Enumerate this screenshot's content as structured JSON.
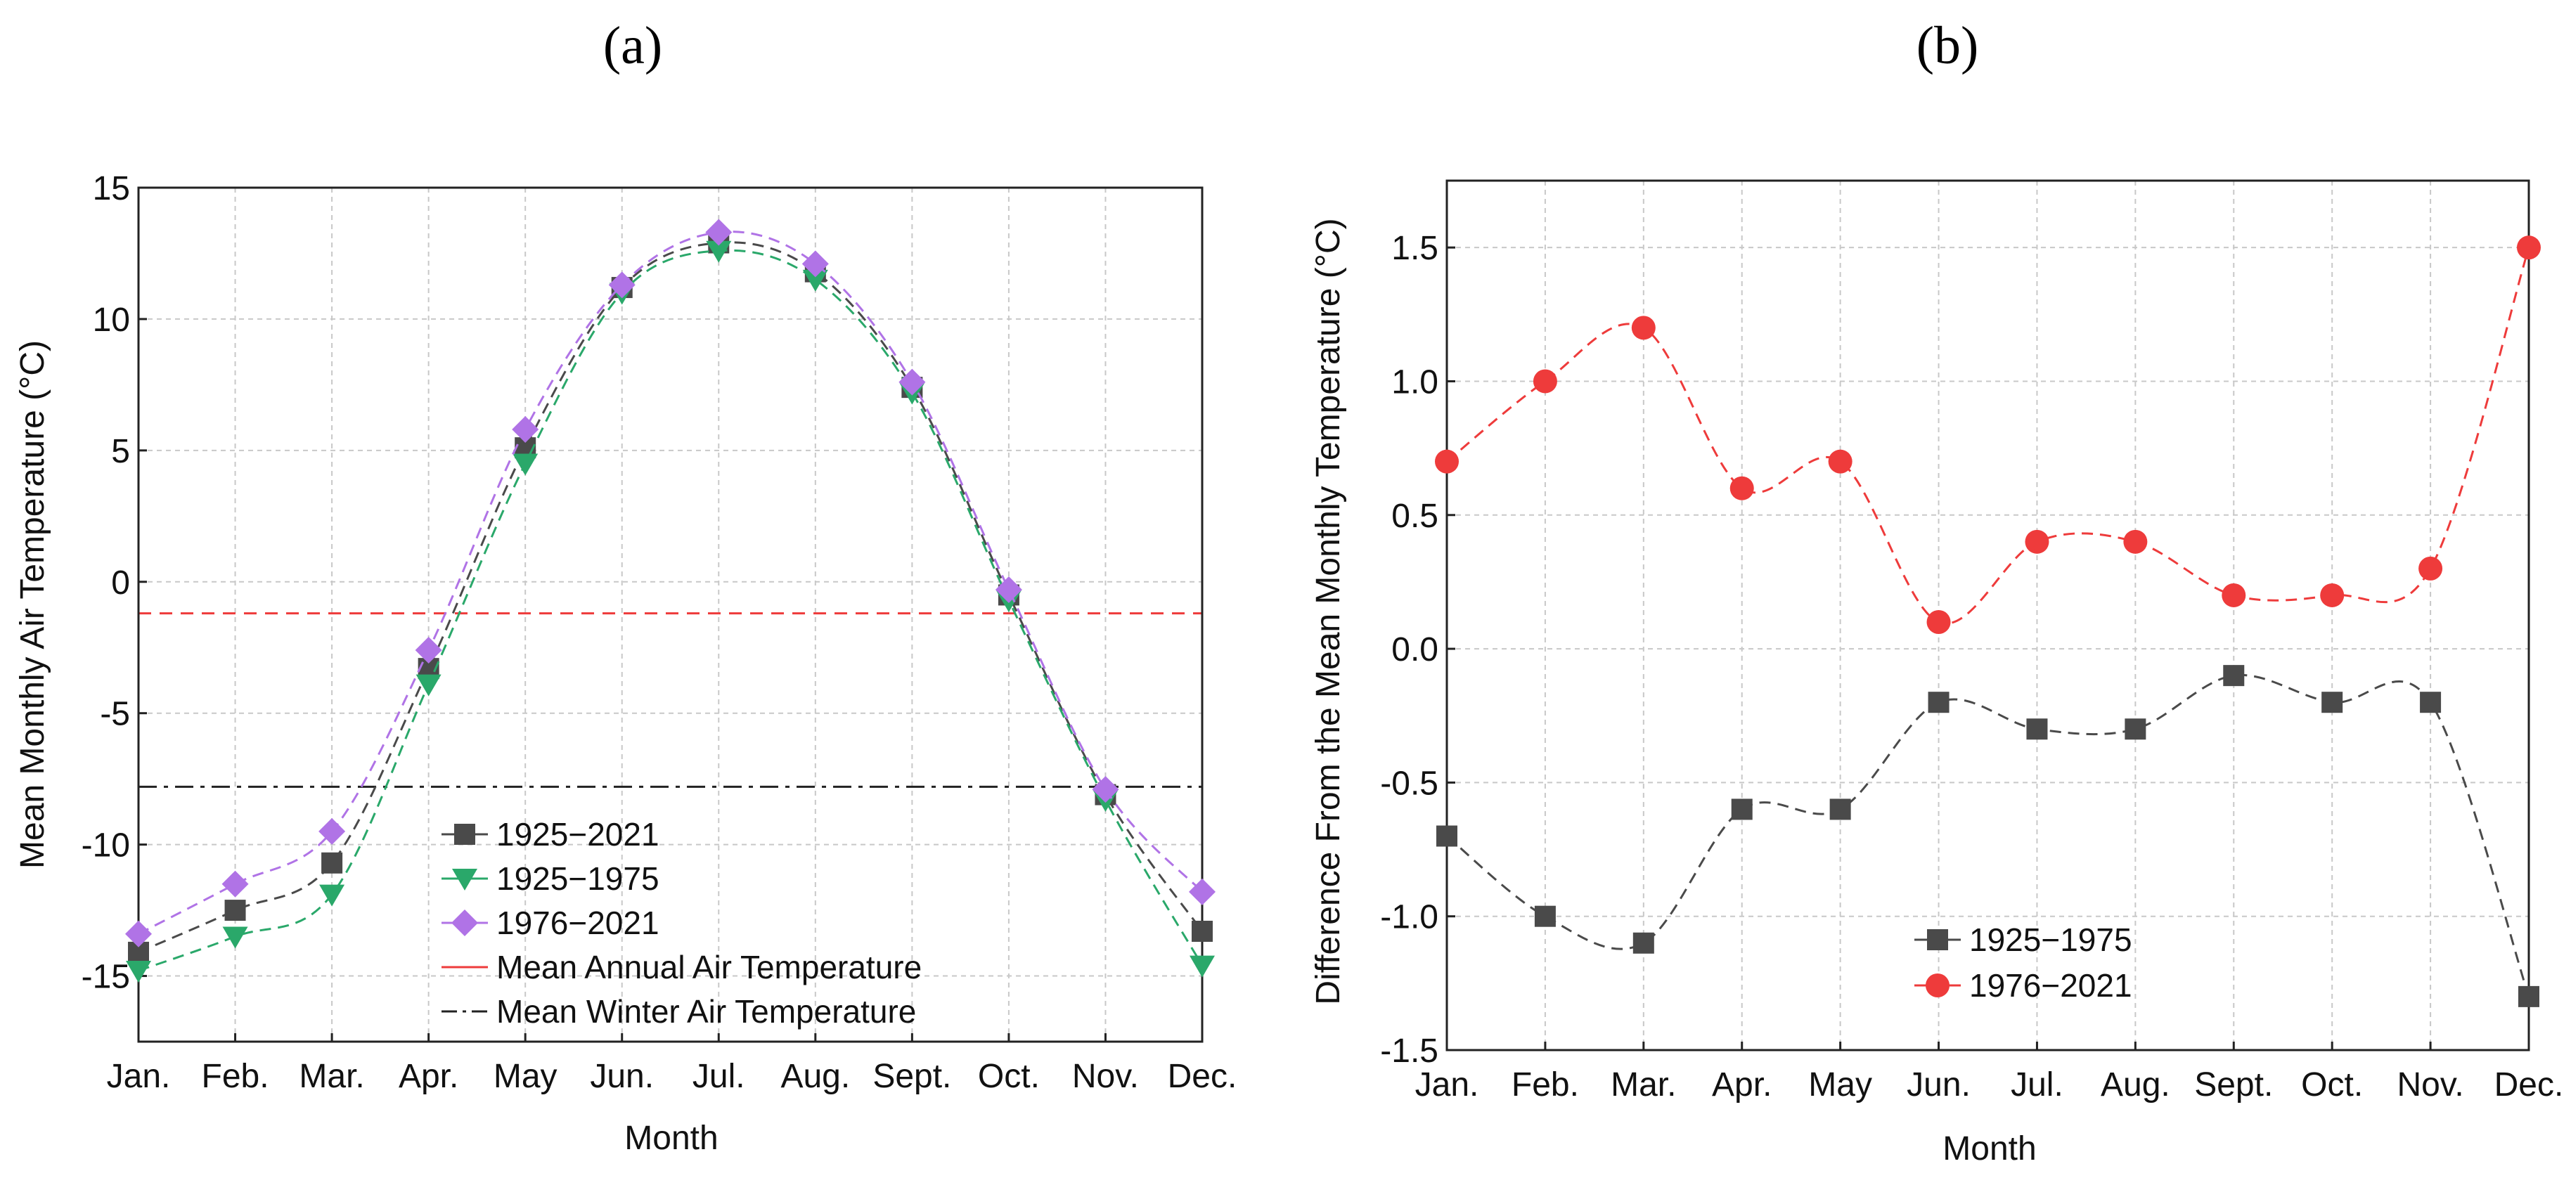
{
  "chart_data": [
    {
      "panel_label": "(a)",
      "type": "line",
      "xlabel": "Month",
      "ylabel": "Mean Monthly Air Temperature (°C)",
      "categories": [
        "Jan.",
        "Feb.",
        "Mar.",
        "Apr.",
        "May",
        "Jun.",
        "Jul.",
        "Aug.",
        "Sept.",
        "Oct.",
        "Nov.",
        "Dec."
      ],
      "ylim": [
        -17.5,
        15
      ],
      "yticks": [
        15,
        10,
        5,
        0,
        -5,
        -10,
        -15
      ],
      "grid": true,
      "legend_position": "bottom-center",
      "series": [
        {
          "name": "1925−2021",
          "marker": "square",
          "color": "#4a4a4a",
          "values": [
            -14.1,
            -12.5,
            -10.7,
            -3.3,
            5.1,
            11.2,
            12.9,
            11.8,
            7.4,
            -0.5,
            -8.1,
            -13.3
          ]
        },
        {
          "name": "1925−1975",
          "marker": "triangle-down",
          "color": "#2aa86a",
          "values": [
            -14.8,
            -13.5,
            -11.9,
            -3.9,
            4.5,
            11.0,
            12.6,
            11.5,
            7.2,
            -0.7,
            -8.3,
            -14.6
          ]
        },
        {
          "name": "1976−2021",
          "marker": "diamond",
          "color": "#b073e6",
          "values": [
            -13.4,
            -11.5,
            -9.5,
            -2.6,
            5.8,
            11.3,
            13.3,
            12.1,
            7.6,
            -0.3,
            -7.9,
            -11.8
          ]
        }
      ],
      "reference_lines": [
        {
          "name": "Mean Annual Air Temperature",
          "y": -1.2,
          "color": "#ee3b3b",
          "style": "dashed"
        },
        {
          "name": "Mean Winter Air Temperature",
          "y": -7.8,
          "color": "#222222",
          "style": "dash-dot"
        }
      ]
    },
    {
      "panel_label": "(b)",
      "type": "line",
      "xlabel": "Month",
      "ylabel": "Difference From the Mean Monthly Temperature (°C)",
      "categories": [
        "Jan.",
        "Feb.",
        "Mar.",
        "Apr.",
        "May",
        "Jun.",
        "Jul.",
        "Aug.",
        "Sept.",
        "Oct.",
        "Nov.",
        "Dec."
      ],
      "ylim": [
        -1.5,
        1.75
      ],
      "yticks": [
        "1.5",
        "1.0",
        "0.5",
        "0.0",
        "-0.5",
        "-1.0",
        "-1.5"
      ],
      "grid": true,
      "legend_position": "bottom-center",
      "series": [
        {
          "name": "1925−1975",
          "marker": "square",
          "color": "#4a4a4a",
          "values": [
            -0.7,
            -1.0,
            -1.1,
            -0.6,
            -0.6,
            -0.2,
            -0.3,
            -0.3,
            -0.1,
            -0.2,
            -0.2,
            -1.3
          ]
        },
        {
          "name": "1976−2021",
          "marker": "circle",
          "color": "#ee3b3b",
          "values": [
            0.7,
            1.0,
            1.2,
            0.6,
            0.7,
            0.1,
            0.4,
            0.4,
            0.2,
            0.2,
            0.3,
            1.5
          ]
        }
      ]
    }
  ]
}
